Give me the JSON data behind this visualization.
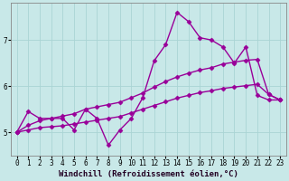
{
  "xlabel": "Windchill (Refroidissement éolien,°C)",
  "bg_color": "#c8e8e8",
  "line_color": "#990099",
  "grid_color": "#aad4d4",
  "line1_x": [
    0,
    1,
    2,
    3,
    4,
    5,
    6,
    7,
    8,
    9,
    10,
    11,
    12,
    13,
    14,
    15,
    16,
    17,
    18,
    19,
    20,
    21,
    22,
    23
  ],
  "line1_y": [
    5.0,
    5.45,
    5.3,
    5.3,
    5.3,
    5.05,
    5.5,
    5.3,
    4.72,
    5.05,
    5.3,
    5.75,
    6.55,
    6.9,
    7.6,
    7.4,
    7.05,
    7.0,
    6.85,
    6.5,
    6.85,
    5.8,
    5.7,
    5.7
  ],
  "line2_x": [
    0,
    1,
    2,
    3,
    4,
    5,
    6,
    7,
    8,
    9,
    10,
    11,
    12,
    13,
    14,
    15,
    16,
    17,
    18,
    19,
    20,
    21,
    22,
    23
  ],
  "line2_y": [
    5.0,
    5.15,
    5.25,
    5.3,
    5.35,
    5.4,
    5.5,
    5.55,
    5.6,
    5.65,
    5.75,
    5.85,
    5.98,
    6.1,
    6.2,
    6.28,
    6.35,
    6.4,
    6.48,
    6.52,
    6.56,
    6.58,
    5.82,
    5.7
  ],
  "line3_x": [
    0,
    1,
    2,
    3,
    4,
    5,
    6,
    7,
    8,
    9,
    10,
    11,
    12,
    13,
    14,
    15,
    16,
    17,
    18,
    19,
    20,
    21,
    22,
    23
  ],
  "line3_y": [
    5.0,
    5.05,
    5.1,
    5.12,
    5.14,
    5.18,
    5.22,
    5.26,
    5.3,
    5.34,
    5.42,
    5.5,
    5.58,
    5.66,
    5.74,
    5.8,
    5.86,
    5.9,
    5.95,
    5.98,
    6.01,
    6.04,
    5.82,
    5.7
  ],
  "ylim": [
    4.5,
    7.8
  ],
  "xlim": [
    -0.5,
    23.5
  ],
  "yticks": [
    5,
    6,
    7
  ],
  "xticks": [
    0,
    1,
    2,
    3,
    4,
    5,
    6,
    7,
    8,
    9,
    10,
    11,
    12,
    13,
    14,
    15,
    16,
    17,
    18,
    19,
    20,
    21,
    22,
    23
  ],
  "marker": "D",
  "markersize": 2.5,
  "linewidth": 1.0,
  "tick_fontsize": 5.5,
  "xlabel_fontsize": 6.5
}
